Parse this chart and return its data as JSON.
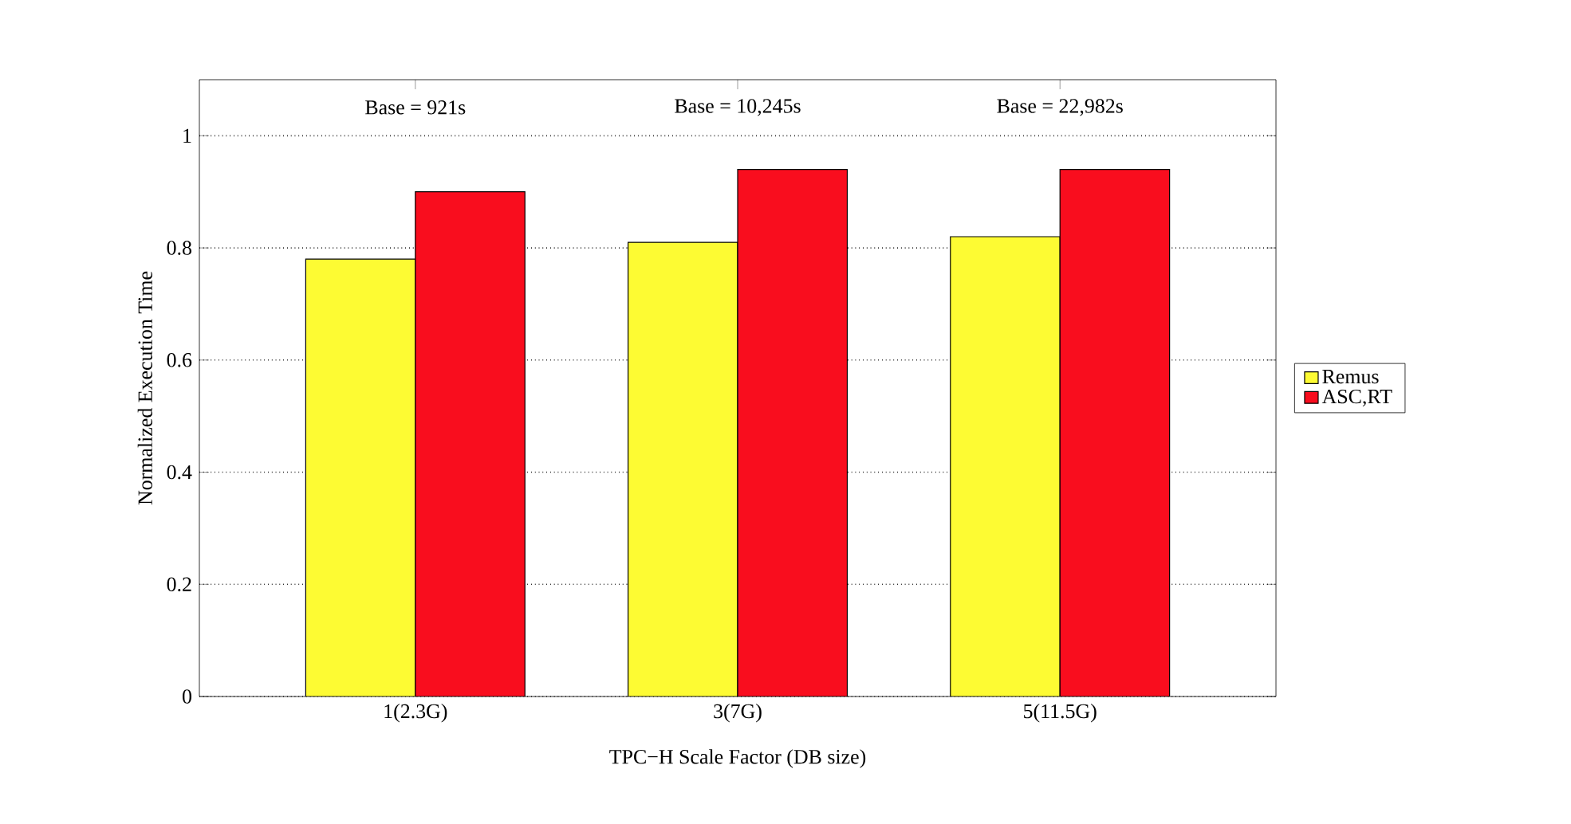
{
  "chart_data": {
    "type": "bar",
    "xlabel": "TPC−H Scale Factor (DB size)",
    "ylabel": "Normalized Execution Time",
    "categories": [
      "1(2.3G)",
      "3(7G)",
      "5(11.5G)"
    ],
    "series": [
      {
        "name": "Remus",
        "color": "#fdfb33",
        "values": [
          0.78,
          0.81,
          0.82
        ]
      },
      {
        "name": "ASC,RT",
        "color": "#f90d1e",
        "values": [
          0.9,
          0.94,
          0.94
        ]
      }
    ],
    "ylim": [
      0,
      1.1
    ],
    "yticks": [
      0,
      0.2,
      0.4,
      0.6,
      0.8,
      1
    ],
    "grid": "y",
    "legend": "right",
    "annotations": [
      "Base = 921s",
      "Base = 10,245s",
      "Base = 22,982s"
    ]
  }
}
